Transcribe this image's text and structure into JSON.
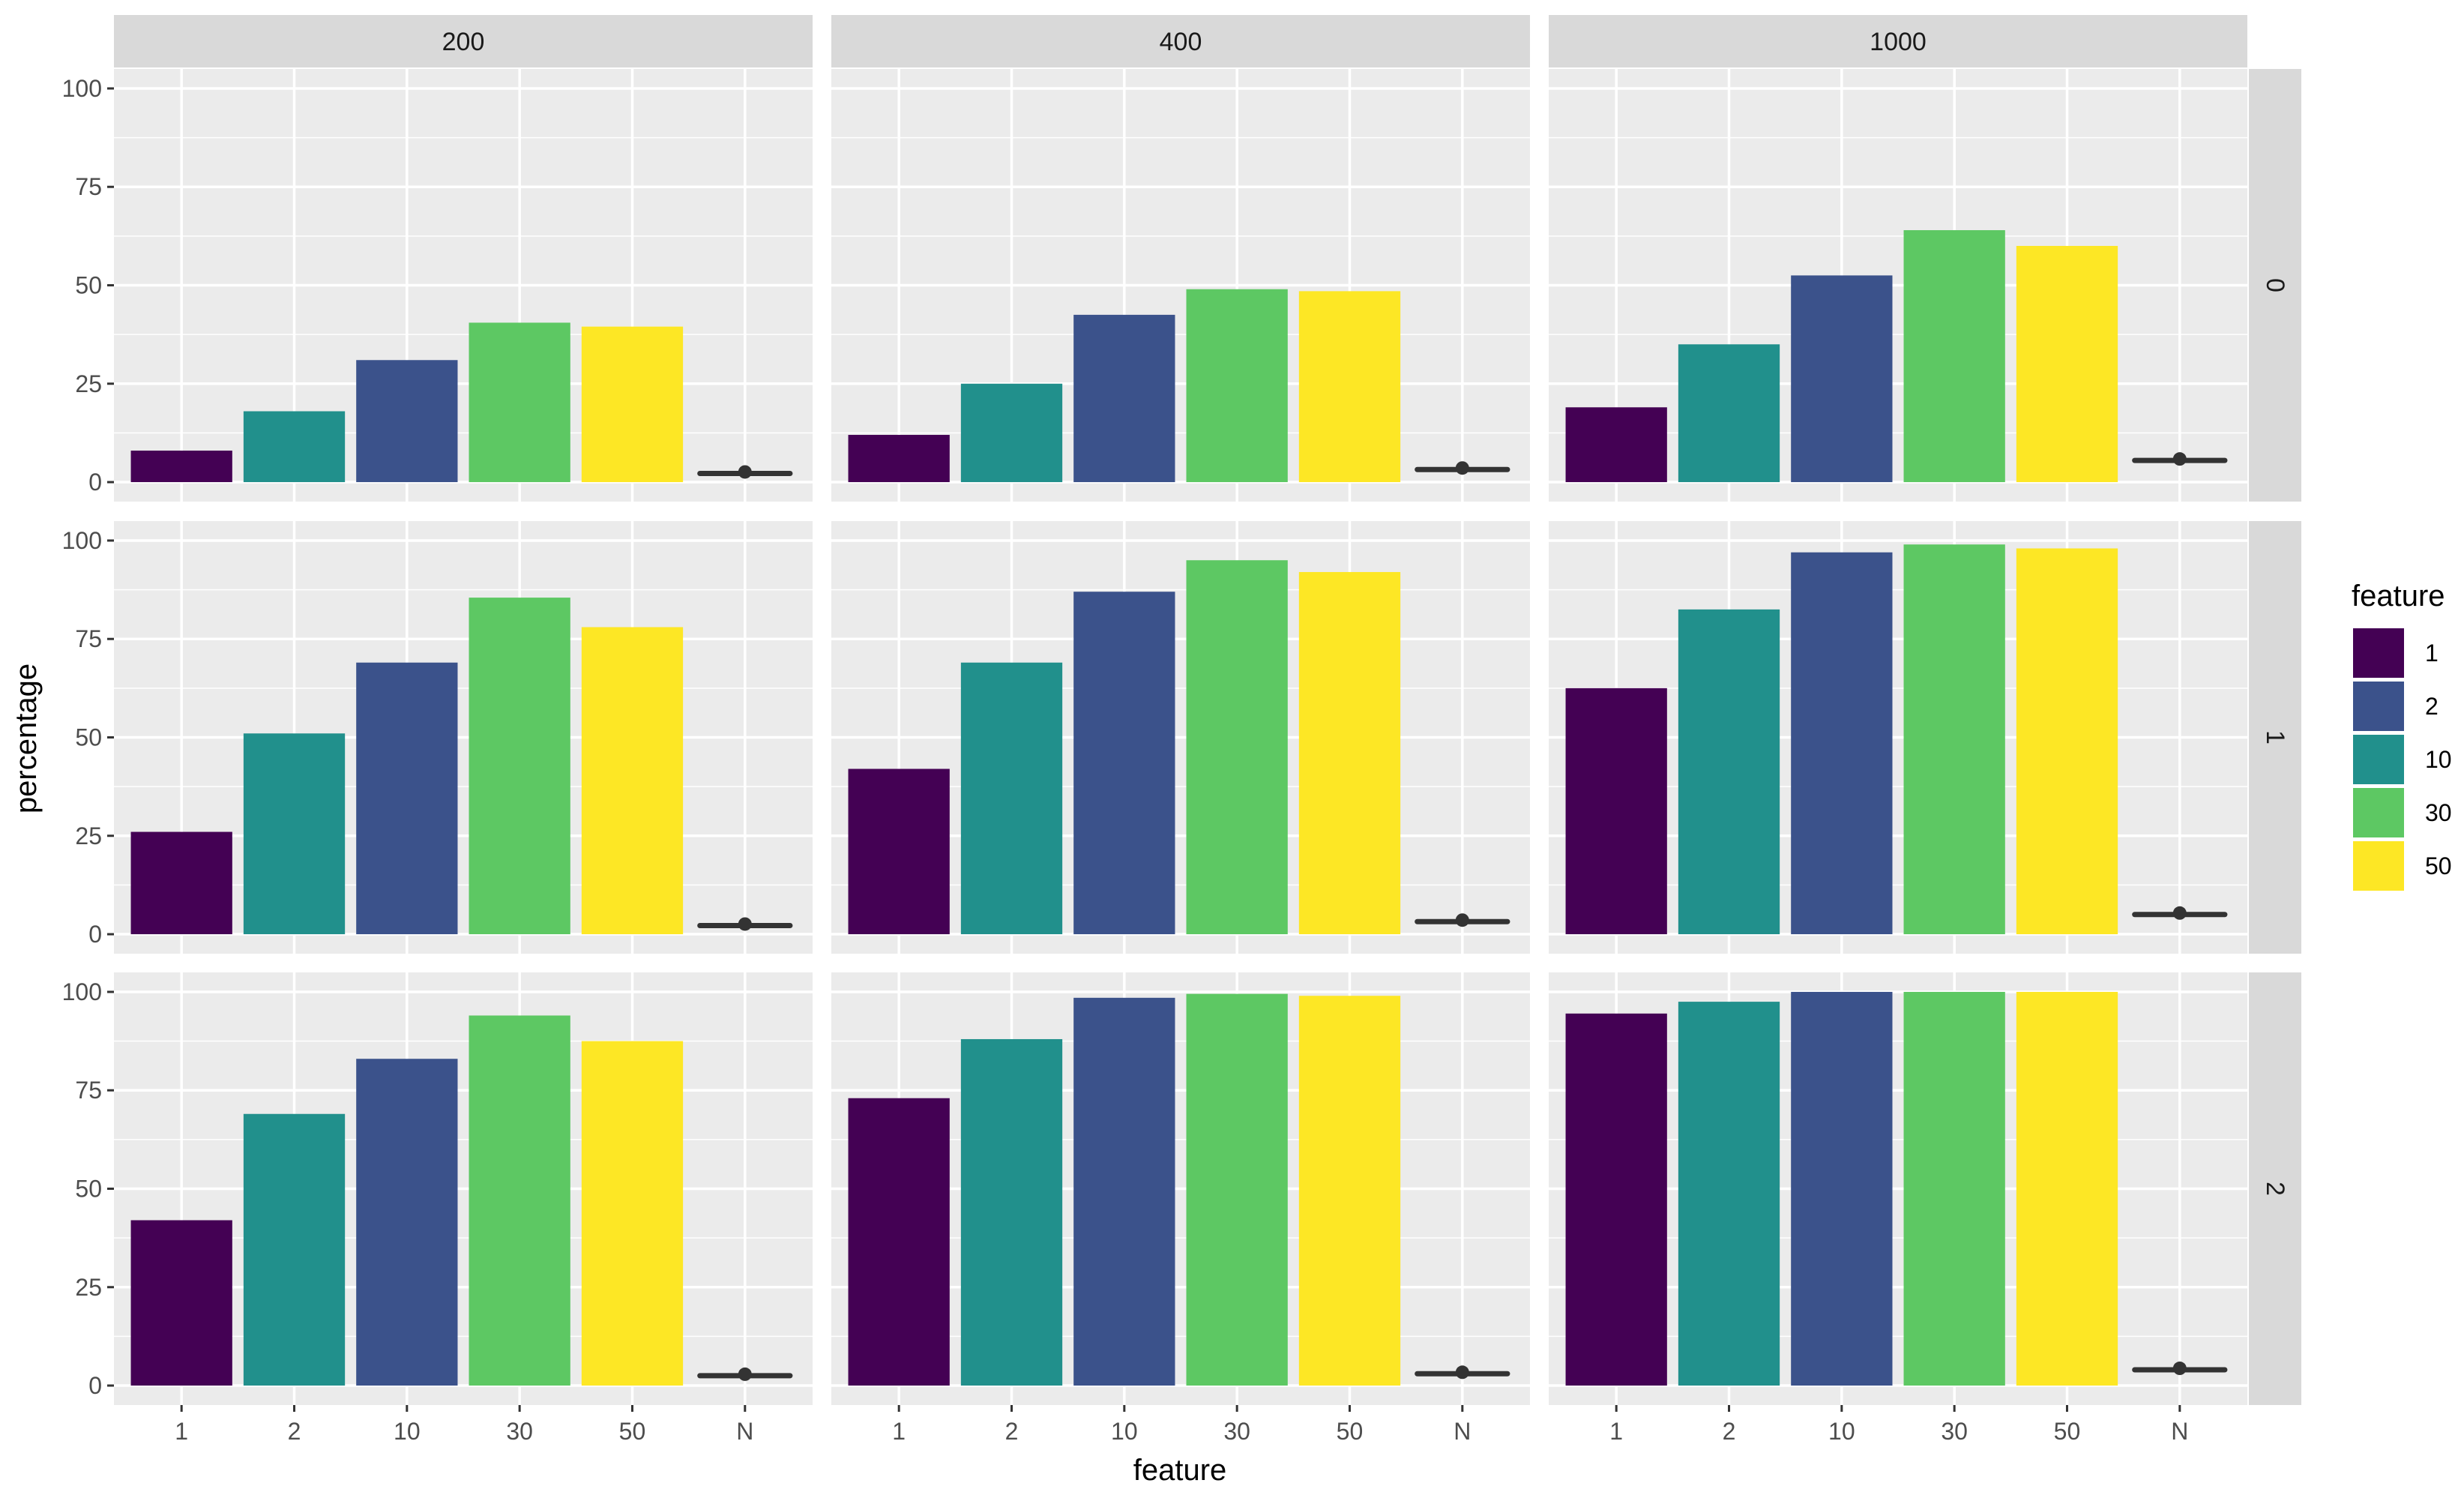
{
  "chart_data": {
    "type": "bar",
    "xlabel": "feature",
    "ylabel": "percentage",
    "ylim": [
      0,
      100
    ],
    "yticks": [
      0,
      25,
      50,
      75,
      100
    ],
    "categories": [
      "1",
      "2",
      "10",
      "30",
      "50",
      "N"
    ],
    "facet_cols": [
      "200",
      "400",
      "1000"
    ],
    "facet_rows": [
      "0",
      "1",
      "2"
    ],
    "legend": {
      "title": "feature",
      "placement": "right",
      "entries": [
        {
          "label": "1",
          "color": "#440154"
        },
        {
          "label": "2",
          "color": "#3B528B"
        },
        {
          "label": "10",
          "color": "#21908C"
        },
        {
          "label": "30",
          "color": "#5DC863"
        },
        {
          "label": "50",
          "color": "#FDE725"
        }
      ]
    },
    "bar_colors": [
      "#440154",
      "#21908C",
      "#3B528B",
      "#5DC863",
      "#FDE725"
    ],
    "grid": true,
    "panels": [
      {
        "row": "0",
        "col": "200",
        "values": [
          8,
          18,
          31,
          40.5,
          39.5
        ],
        "n_marker": 2.2
      },
      {
        "row": "0",
        "col": "400",
        "values": [
          12,
          25,
          42.5,
          49,
          48.5
        ],
        "n_marker": 3.2
      },
      {
        "row": "0",
        "col": "1000",
        "values": [
          19,
          35,
          52.5,
          64,
          60
        ],
        "n_marker": 5.5
      },
      {
        "row": "1",
        "col": "200",
        "values": [
          26,
          51,
          69,
          85.5,
          78
        ],
        "n_marker": 2.2
      },
      {
        "row": "1",
        "col": "400",
        "values": [
          42,
          69,
          87,
          95,
          92
        ],
        "n_marker": 3.2
      },
      {
        "row": "1",
        "col": "1000",
        "values": [
          62.5,
          82.5,
          97,
          99,
          98
        ],
        "n_marker": 5
      },
      {
        "row": "2",
        "col": "200",
        "values": [
          42,
          69,
          83,
          94,
          87.5
        ],
        "n_marker": 2.5
      },
      {
        "row": "2",
        "col": "400",
        "values": [
          73,
          88,
          98.5,
          99.5,
          99
        ],
        "n_marker": 3
      },
      {
        "row": "2",
        "col": "1000",
        "values": [
          94.5,
          97.5,
          100,
          100,
          100
        ],
        "n_marker": 4
      }
    ]
  }
}
